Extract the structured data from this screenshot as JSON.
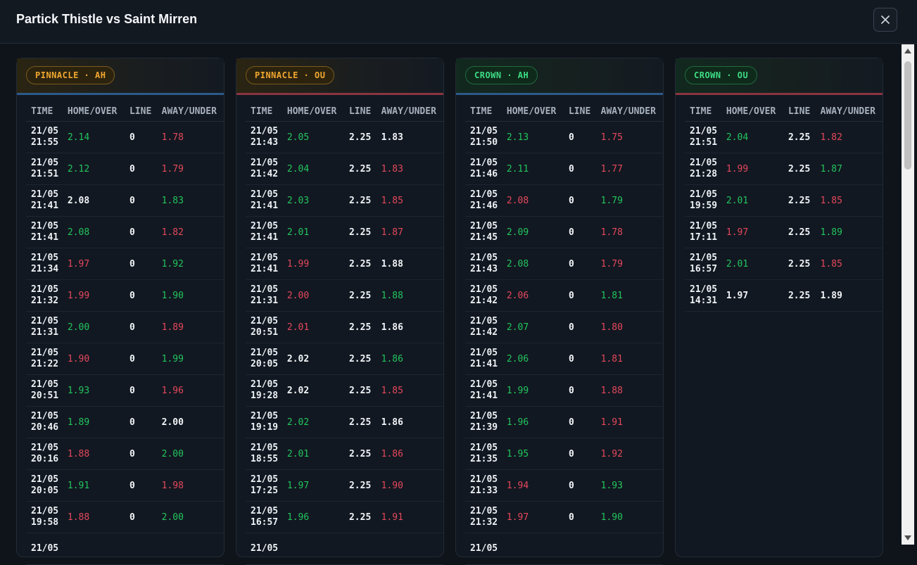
{
  "title": "Partick Thistle vs Saint Mirren",
  "colors": {
    "up": "#22c55e",
    "down": "#e5485d",
    "pinnacle": "#f0a830",
    "crown": "#3ddc84"
  },
  "headers": {
    "time": "TIME",
    "home": "HOME/OVER",
    "line": "LINE",
    "away": "AWAY/UNDER"
  },
  "panels": [
    {
      "badge": "PINNACLE · AH",
      "brand": "pin",
      "market": "ah",
      "rows": [
        {
          "date": "21/05",
          "time": "21:55",
          "home": "2.14",
          "hs": "up",
          "line": "0",
          "away": "1.78",
          "as": "down"
        },
        {
          "date": "21/05",
          "time": "21:51",
          "home": "2.12",
          "hs": "up",
          "line": "0",
          "away": "1.79",
          "as": "down"
        },
        {
          "date": "21/05",
          "time": "21:41",
          "home": "2.08",
          "hs": "flat",
          "line": "0",
          "away": "1.83",
          "as": "up"
        },
        {
          "date": "21/05",
          "time": "21:41",
          "home": "2.08",
          "hs": "up",
          "line": "0",
          "away": "1.82",
          "as": "down"
        },
        {
          "date": "21/05",
          "time": "21:34",
          "home": "1.97",
          "hs": "down",
          "line": "0",
          "away": "1.92",
          "as": "up"
        },
        {
          "date": "21/05",
          "time": "21:32",
          "home": "1.99",
          "hs": "down",
          "line": "0",
          "away": "1.90",
          "as": "up"
        },
        {
          "date": "21/05",
          "time": "21:31",
          "home": "2.00",
          "hs": "up",
          "line": "0",
          "away": "1.89",
          "as": "down"
        },
        {
          "date": "21/05",
          "time": "21:22",
          "home": "1.90",
          "hs": "down",
          "line": "0",
          "away": "1.99",
          "as": "up"
        },
        {
          "date": "21/05",
          "time": "20:51",
          "home": "1.93",
          "hs": "up",
          "line": "0",
          "away": "1.96",
          "as": "down"
        },
        {
          "date": "21/05",
          "time": "20:46",
          "home": "1.89",
          "hs": "up",
          "line": "0",
          "away": "2.00",
          "as": "flat"
        },
        {
          "date": "21/05",
          "time": "20:16",
          "home": "1.88",
          "hs": "down",
          "line": "0",
          "away": "2.00",
          "as": "up"
        },
        {
          "date": "21/05",
          "time": "20:05",
          "home": "1.91",
          "hs": "up",
          "line": "0",
          "away": "1.98",
          "as": "down"
        },
        {
          "date": "21/05",
          "time": "19:58",
          "home": "1.88",
          "hs": "down",
          "line": "0",
          "away": "2.00",
          "as": "up"
        },
        {
          "date": "21/05",
          "time": "",
          "home": "",
          "hs": "flat",
          "line": "",
          "away": "",
          "as": "flat"
        }
      ]
    },
    {
      "badge": "PINNACLE · OU",
      "brand": "pin",
      "market": "ou",
      "rows": [
        {
          "date": "21/05",
          "time": "21:43",
          "home": "2.05",
          "hs": "up",
          "line": "2.25",
          "away": "1.83",
          "as": "flat"
        },
        {
          "date": "21/05",
          "time": "21:42",
          "home": "2.04",
          "hs": "up",
          "line": "2.25",
          "away": "1.83",
          "as": "down"
        },
        {
          "date": "21/05",
          "time": "21:41",
          "home": "2.03",
          "hs": "up",
          "line": "2.25",
          "away": "1.85",
          "as": "down"
        },
        {
          "date": "21/05",
          "time": "21:41",
          "home": "2.01",
          "hs": "up",
          "line": "2.25",
          "away": "1.87",
          "as": "down"
        },
        {
          "date": "21/05",
          "time": "21:41",
          "home": "1.99",
          "hs": "down",
          "line": "2.25",
          "away": "1.88",
          "as": "flat"
        },
        {
          "date": "21/05",
          "time": "21:31",
          "home": "2.00",
          "hs": "down",
          "line": "2.25",
          "away": "1.88",
          "as": "up"
        },
        {
          "date": "21/05",
          "time": "20:51",
          "home": "2.01",
          "hs": "down",
          "line": "2.25",
          "away": "1.86",
          "as": "flat"
        },
        {
          "date": "21/05",
          "time": "20:05",
          "home": "2.02",
          "hs": "flat",
          "line": "2.25",
          "away": "1.86",
          "as": "up"
        },
        {
          "date": "21/05",
          "time": "19:28",
          "home": "2.02",
          "hs": "flat",
          "line": "2.25",
          "away": "1.85",
          "as": "down"
        },
        {
          "date": "21/05",
          "time": "19:19",
          "home": "2.02",
          "hs": "up",
          "line": "2.25",
          "away": "1.86",
          "as": "flat"
        },
        {
          "date": "21/05",
          "time": "18:55",
          "home": "2.01",
          "hs": "up",
          "line": "2.25",
          "away": "1.86",
          "as": "down"
        },
        {
          "date": "21/05",
          "time": "17:25",
          "home": "1.97",
          "hs": "up",
          "line": "2.25",
          "away": "1.90",
          "as": "down"
        },
        {
          "date": "21/05",
          "time": "16:57",
          "home": "1.96",
          "hs": "up",
          "line": "2.25",
          "away": "1.91",
          "as": "down"
        },
        {
          "date": "21/05",
          "time": "",
          "home": "",
          "hs": "flat",
          "line": "",
          "away": "",
          "as": "flat"
        }
      ]
    },
    {
      "badge": "CROWN · AH",
      "brand": "cro",
      "market": "ah",
      "rows": [
        {
          "date": "21/05",
          "time": "21:50",
          "home": "2.13",
          "hs": "up",
          "line": "0",
          "away": "1.75",
          "as": "down"
        },
        {
          "date": "21/05",
          "time": "21:46",
          "home": "2.11",
          "hs": "up",
          "line": "0",
          "away": "1.77",
          "as": "down"
        },
        {
          "date": "21/05",
          "time": "21:46",
          "home": "2.08",
          "hs": "down",
          "line": "0",
          "away": "1.79",
          "as": "up"
        },
        {
          "date": "21/05",
          "time": "21:45",
          "home": "2.09",
          "hs": "up",
          "line": "0",
          "away": "1.78",
          "as": "down"
        },
        {
          "date": "21/05",
          "time": "21:43",
          "home": "2.08",
          "hs": "up",
          "line": "0",
          "away": "1.79",
          "as": "down"
        },
        {
          "date": "21/05",
          "time": "21:42",
          "home": "2.06",
          "hs": "down",
          "line": "0",
          "away": "1.81",
          "as": "up"
        },
        {
          "date": "21/05",
          "time": "21:42",
          "home": "2.07",
          "hs": "up",
          "line": "0",
          "away": "1.80",
          "as": "down"
        },
        {
          "date": "21/05",
          "time": "21:41",
          "home": "2.06",
          "hs": "up",
          "line": "0",
          "away": "1.81",
          "as": "down"
        },
        {
          "date": "21/05",
          "time": "21:41",
          "home": "1.99",
          "hs": "up",
          "line": "0",
          "away": "1.88",
          "as": "down"
        },
        {
          "date": "21/05",
          "time": "21:39",
          "home": "1.96",
          "hs": "up",
          "line": "0",
          "away": "1.91",
          "as": "down"
        },
        {
          "date": "21/05",
          "time": "21:35",
          "home": "1.95",
          "hs": "up",
          "line": "0",
          "away": "1.92",
          "as": "down"
        },
        {
          "date": "21/05",
          "time": "21:33",
          "home": "1.94",
          "hs": "down",
          "line": "0",
          "away": "1.93",
          "as": "up"
        },
        {
          "date": "21/05",
          "time": "21:32",
          "home": "1.97",
          "hs": "down",
          "line": "0",
          "away": "1.90",
          "as": "up"
        },
        {
          "date": "21/05",
          "time": "",
          "home": "",
          "hs": "flat",
          "line": "",
          "away": "",
          "as": "flat"
        }
      ]
    },
    {
      "badge": "CROWN · OU",
      "brand": "cro",
      "market": "ou",
      "rows": [
        {
          "date": "21/05",
          "time": "21:51",
          "home": "2.04",
          "hs": "up",
          "line": "2.25",
          "away": "1.82",
          "as": "down"
        },
        {
          "date": "21/05",
          "time": "21:28",
          "home": "1.99",
          "hs": "down",
          "line": "2.25",
          "away": "1.87",
          "as": "up"
        },
        {
          "date": "21/05",
          "time": "19:59",
          "home": "2.01",
          "hs": "up",
          "line": "2.25",
          "away": "1.85",
          "as": "down"
        },
        {
          "date": "21/05",
          "time": "17:11",
          "home": "1.97",
          "hs": "down",
          "line": "2.25",
          "away": "1.89",
          "as": "up"
        },
        {
          "date": "21/05",
          "time": "16:57",
          "home": "2.01",
          "hs": "up",
          "line": "2.25",
          "away": "1.85",
          "as": "down"
        },
        {
          "date": "21/05",
          "time": "14:31",
          "home": "1.97",
          "hs": "flat",
          "line": "2.25",
          "away": "1.89",
          "as": "flat"
        }
      ]
    }
  ]
}
